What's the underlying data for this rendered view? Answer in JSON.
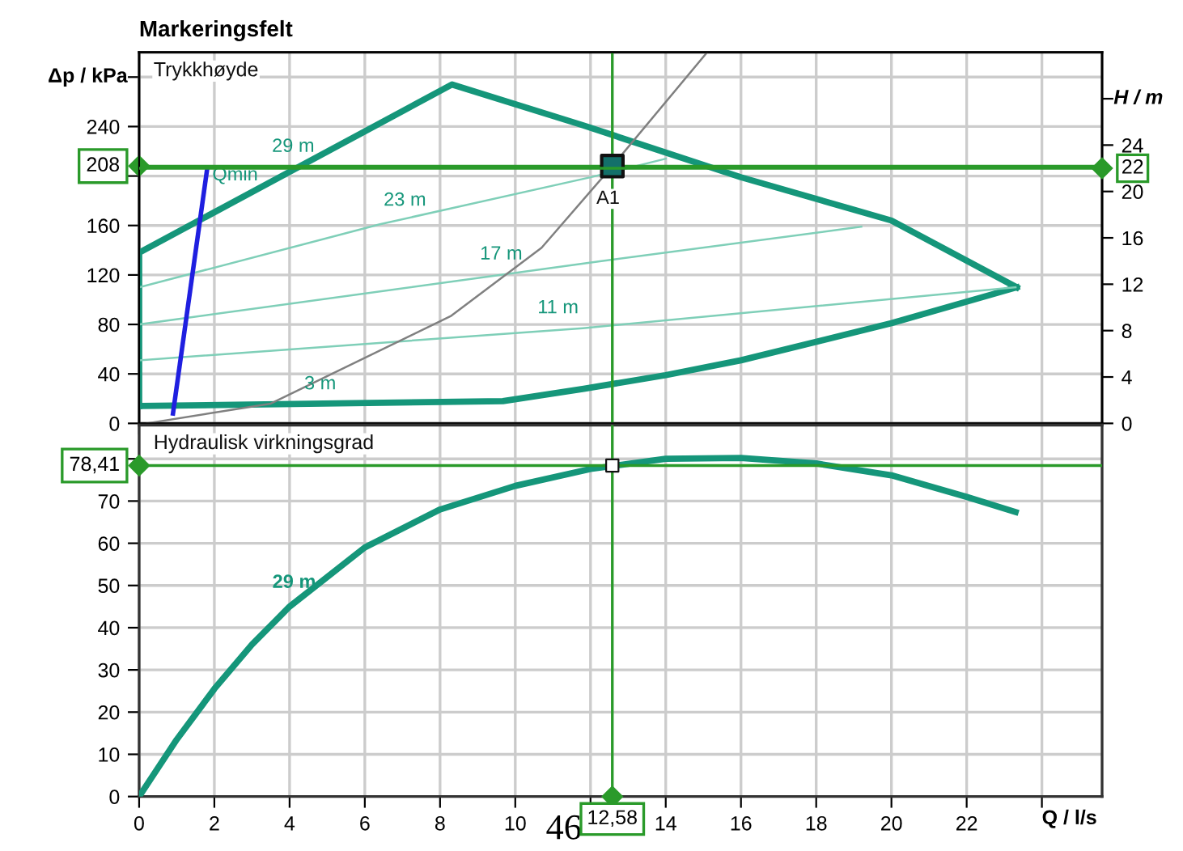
{
  "chart_data": [
    {
      "type": "line",
      "title": "Markeringsfelt",
      "ylabel": "Δp / kPa",
      "y2label": "H / m",
      "xlim": [
        0,
        25.6
      ],
      "xticks": [
        0,
        2,
        4,
        6,
        8,
        10,
        12,
        14,
        16,
        18,
        20,
        22,
        24
      ],
      "ylim": [
        0,
        300
      ],
      "yticks": [
        0,
        40,
        80,
        120,
        160,
        {
          "value": 200,
          "label": null
        },
        240,
        {
          "value": 280,
          "label": null
        }
      ],
      "y2lim": [
        0,
        32
      ],
      "y2ticks": [
        0,
        4,
        8,
        12,
        16,
        20,
        24,
        {
          "value": 28,
          "label": null
        }
      ],
      "tick_labels": "y",
      "grid": true,
      "legend": false,
      "series": [
        {
          "color": "#15967a",
          "x": [
            0,
            0,
            8.32,
            11.8,
            16,
            20,
            23.33
          ],
          "values": [
            14,
            138,
            274,
            241,
            199,
            164,
            110
          ]
        },
        {
          "color": "#15967a",
          "x": [
            0,
            9.67,
            11.82,
            14,
            16,
            20,
            23.33
          ],
          "values": [
            14,
            18,
            28,
            39,
            51,
            81,
            110
          ]
        },
        {
          "color": "#7fcfb8",
          "x": [
            0,
            6.4,
            12,
            14
          ],
          "values": [
            110,
            161,
            199,
            214
          ]
        },
        {
          "color": "#7fcfb8",
          "x": [
            0,
            12.25,
            19.2
          ],
          "values": [
            80,
            131,
            159
          ]
        },
        {
          "color": "#7fcfb8",
          "x": [
            0,
            11.8,
            23.3
          ],
          "values": [
            51,
            77,
            110
          ]
        },
        {
          "color": "#808080",
          "x": [
            0.2,
            3.5,
            8.3,
            10.7,
            12.58,
            15.1
          ],
          "values": [
            0,
            16,
            87,
            142,
            208,
            300
          ]
        },
        {
          "color": "#1f1fe0",
          "x": [
            0.9,
            1.81
          ],
          "values": [
            8,
            206
          ]
        },
        {
          "type": "scatter",
          "marker": "square",
          "color": "#13706a",
          "x": [
            12.58
          ],
          "values": [
            208
          ]
        }
      ],
      "ref_lines": [
        {
          "axis": "y",
          "value": 208,
          "label": "208",
          "color": "#2a9a2a"
        },
        {
          "axis": "y2",
          "value": 22,
          "label": "22",
          "color": "#2a9a2a"
        },
        {
          "axis": "x",
          "value": 12.58,
          "label": null,
          "color": "#2a9a2a"
        }
      ],
      "annotations": [
        "Trykkhøyde",
        "29 m",
        "23 m",
        "17 m",
        "11 m",
        "3 m",
        "Qmin",
        "A1"
      ]
    },
    {
      "type": "line",
      "xlabel": "Q / l/s",
      "xlim": [
        0,
        25.6
      ],
      "xticks": [
        0,
        2,
        4,
        6,
        8,
        10,
        {
          "value": 12,
          "label": null
        },
        14,
        16,
        18,
        20,
        22,
        {
          "value": 24,
          "label": null
        }
      ],
      "ylim": [
        0,
        88
      ],
      "yticks": [
        0,
        10,
        20,
        30,
        40,
        50,
        60,
        70,
        {
          "value": 80,
          "label": null
        }
      ],
      "grid": true,
      "legend": false,
      "series": [
        {
          "color": "#15967a",
          "x": [
            0,
            1,
            2,
            3,
            4,
            6,
            8,
            10,
            12,
            14,
            16,
            18,
            20,
            22,
            23.3
          ],
          "values": [
            0,
            13.5,
            25.5,
            36,
            45,
            59,
            68,
            73.6,
            77.6,
            80,
            80.2,
            78.9,
            76.1,
            71,
            67.4
          ]
        },
        {
          "type": "scatter",
          "marker": "square",
          "color": "#ffffff",
          "x": [
            12.58
          ],
          "values": [
            78.41
          ]
        }
      ],
      "ref_lines": [
        {
          "axis": "y",
          "value": 78.41,
          "label": "78,41",
          "color": "#2a9a2a"
        },
        {
          "axis": "x",
          "value": 12.58,
          "label": "12,58",
          "color": "#2a9a2a"
        }
      ],
      "annotations": [
        "Hydraulisk virkningsgrad",
        "29 m",
        "46"
      ]
    }
  ]
}
